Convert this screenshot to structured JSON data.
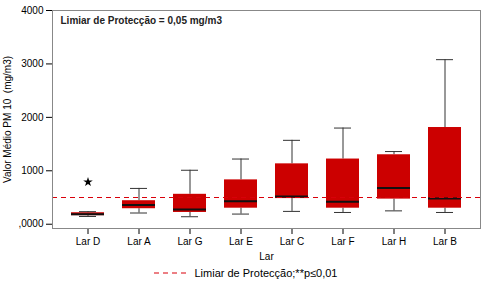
{
  "chart_data": {
    "type": "box",
    "annotation": "Limiar de Protecção = 0,05 mg/m3",
    "xlabel": "Lar",
    "ylabel": "Valor Médio PM 10  (mg/m3)",
    "ylim": [
      -80,
      4000
    ],
    "yticks": [
      {
        "value": 0,
        "label": ",0000"
      },
      1000,
      2000,
      3000,
      4000
    ],
    "color": "#cc0000",
    "grid": false,
    "legend": "bottom",
    "threshold": {
      "value": 500,
      "label": "Limiar de Protecção;**p≤0,01",
      "color": "#d9000a"
    },
    "categories": [
      "Lar D",
      "Lar A",
      "Lar G",
      "Lar E",
      "Lar C",
      "Lar F",
      "Lar H",
      "Lar B"
    ],
    "boxes": [
      {
        "q1": 160,
        "median": 185,
        "q3": 215,
        "whislo": 145,
        "whishi": 235,
        "outliers": [
          790
        ]
      },
      {
        "q1": 290,
        "median": 360,
        "q3": 440,
        "whislo": 210,
        "whishi": 670,
        "outliers": []
      },
      {
        "q1": 220,
        "median": 275,
        "q3": 560,
        "whislo": 140,
        "whishi": 1010,
        "outliers": []
      },
      {
        "q1": 300,
        "median": 430,
        "q3": 830,
        "whislo": 190,
        "whishi": 1220,
        "outliers": []
      },
      {
        "q1": 480,
        "median": 520,
        "q3": 1130,
        "whislo": 240,
        "whishi": 1570,
        "outliers": []
      },
      {
        "q1": 300,
        "median": 420,
        "q3": 1220,
        "whislo": 220,
        "whishi": 1800,
        "outliers": []
      },
      {
        "q1": 470,
        "median": 680,
        "q3": 1300,
        "whislo": 250,
        "whishi": 1360,
        "outliers": []
      },
      {
        "q1": 300,
        "median": 480,
        "q3": 1810,
        "whislo": 220,
        "whishi": 3080,
        "outliers": []
      }
    ]
  }
}
